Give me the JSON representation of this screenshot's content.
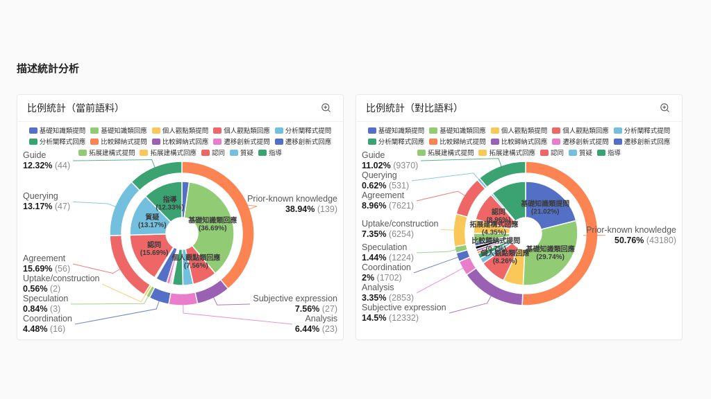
{
  "page": {
    "title": "描述統計分析"
  },
  "legend": {
    "items": [
      {
        "label": "基礎知識類提問",
        "color": "#5470c6"
      },
      {
        "label": "基礎知識類回應",
        "color": "#91cc75"
      },
      {
        "label": "個人觀點類提問",
        "color": "#fac858"
      },
      {
        "label": "個人觀點類回應",
        "color": "#ee6666"
      },
      {
        "label": "分析闡釋式提問",
        "color": "#73c0de"
      },
      {
        "label": "分析闡釋式回應",
        "color": "#3ba272"
      },
      {
        "label": "比較歸納式提問",
        "color": "#fc8452"
      },
      {
        "label": "比較歸納式回應",
        "color": "#9a60b4"
      },
      {
        "label": "遷移創新式提問",
        "color": "#ea7ccc"
      },
      {
        "label": "遷移創新式回應",
        "color": "#5470c6"
      },
      {
        "label": "拓展建構式提問",
        "color": "#91cc75"
      },
      {
        "label": "拓展建構式回應",
        "color": "#fac858"
      },
      {
        "label": "認同",
        "color": "#ee6666"
      },
      {
        "label": "質疑",
        "color": "#73c0de"
      },
      {
        "label": "指導",
        "color": "#3ba272"
      }
    ]
  },
  "panels": [
    {
      "title": "比例統計（當前語料）",
      "zoom_icon": "zoom-in-icon"
    },
    {
      "title": "比例統計（對比語料）",
      "zoom_icon": "zoom-in-icon"
    }
  ],
  "chart_data": [
    {
      "type": "pie",
      "variant": "nested-donut",
      "title": "比例統計（當前語料）",
      "legend_position": "top",
      "outer_ring": {
        "name": "interaction-categories",
        "segments": [
          {
            "label": "Prior-known knowledge",
            "pct": "38.94%",
            "value": 38.94,
            "count": 139,
            "color": "#fc8452"
          },
          {
            "label": "Subjective expression",
            "pct": "7.56%",
            "value": 7.56,
            "count": 27,
            "color": "#9a60b4"
          },
          {
            "label": "Analysis",
            "pct": "6.44%",
            "value": 6.44,
            "count": 23,
            "color": "#ea7ccc"
          },
          {
            "label": "Coordination",
            "pct": "4.48%",
            "value": 4.48,
            "count": 16,
            "color": "#5470c6"
          },
          {
            "label": "Speculation",
            "pct": "0.84%",
            "value": 0.84,
            "count": 3,
            "color": "#91cc75"
          },
          {
            "label": "Uptake/construction",
            "pct": "0.56%",
            "value": 0.56,
            "count": 2,
            "color": "#fac858"
          },
          {
            "label": "Agreement",
            "pct": "15.69%",
            "value": 15.69,
            "count": 56,
            "color": "#ee6666"
          },
          {
            "label": "Querying",
            "pct": "13.17%",
            "value": 13.17,
            "count": 47,
            "color": "#73c0de"
          },
          {
            "label": "Guide",
            "pct": "12.32%",
            "value": 12.32,
            "count": 44,
            "color": "#3ba272"
          }
        ]
      },
      "inner_ring": {
        "name": "subcategories",
        "segments": [
          {
            "label": "基礎知識類提問",
            "value": 2.25,
            "color": "#5470c6",
            "show_label": false
          },
          {
            "label": "基礎知識類回應",
            "value": 36.69,
            "pct": "36.69%",
            "color": "#91cc75",
            "show_label": true
          },
          {
            "label": "個人觀點類提問",
            "value": 0,
            "color": "#fac858",
            "show_label": false
          },
          {
            "label": "個人觀點類回應",
            "value": 7.56,
            "pct": "7.56%",
            "color": "#ee6666",
            "show_label": true
          },
          {
            "label": "分析闡釋式提問",
            "value": 3.2,
            "color": "#73c0de",
            "show_label": false
          },
          {
            "label": "分析闡釋式回應",
            "value": 3.24,
            "color": "#3ba272",
            "show_label": false
          },
          {
            "label": "比較歸納式提問",
            "value": 0.4,
            "color": "#fc8452",
            "show_label": false
          },
          {
            "label": "比較歸納式回應",
            "value": 0.44,
            "color": "#9a60b4",
            "show_label": false
          },
          {
            "label": "遷移創新式提問",
            "value": 1.0,
            "color": "#ea7ccc",
            "show_label": false
          },
          {
            "label": "遷移創新式回應",
            "value": 3.48,
            "color": "#5470c6",
            "show_label": false
          },
          {
            "label": "拓展建構式提問",
            "value": 0.28,
            "color": "#91cc75",
            "show_label": false
          },
          {
            "label": "拓展建構式回應",
            "value": 0.28,
            "color": "#fac858",
            "show_label": false
          },
          {
            "label": "認同",
            "value": 15.69,
            "pct": "15.69%",
            "color": "#ee6666",
            "show_label": true
          },
          {
            "label": "質疑",
            "value": 13.17,
            "pct": "13.17%",
            "color": "#73c0de",
            "show_label": true
          },
          {
            "label": "指導",
            "value": 12.33,
            "pct": "12.33%",
            "color": "#3ba272",
            "show_label": true
          }
        ]
      }
    },
    {
      "type": "pie",
      "variant": "nested-donut",
      "title": "比例統計（對比語料）",
      "legend_position": "top",
      "outer_ring": {
        "name": "interaction-categories",
        "segments": [
          {
            "label": "Prior-known knowledge",
            "pct": "50.76%",
            "value": 50.76,
            "count": 43180,
            "color": "#fc8452"
          },
          {
            "label": "Subjective expression",
            "pct": "14.5%",
            "value": 14.5,
            "count": 12332,
            "color": "#9a60b4"
          },
          {
            "label": "Analysis",
            "pct": "3.35%",
            "value": 3.35,
            "count": 2853,
            "color": "#ea7ccc"
          },
          {
            "label": "Coordination",
            "pct": "2%",
            "value": 2,
            "count": 1702,
            "color": "#5470c6"
          },
          {
            "label": "Speculation",
            "pct": "1.44%",
            "value": 1.44,
            "count": 1224,
            "color": "#91cc75"
          },
          {
            "label": "Uptake/construction",
            "pct": "7.35%",
            "value": 7.35,
            "count": 6254,
            "color": "#fac858"
          },
          {
            "label": "Agreement",
            "pct": "8.96%",
            "value": 8.96,
            "count": 7621,
            "color": "#ee6666"
          },
          {
            "label": "Querying",
            "pct": "0.62%",
            "value": 0.62,
            "count": 531,
            "color": "#73c0de"
          },
          {
            "label": "Guide",
            "pct": "11.02%",
            "value": 11.02,
            "count": 9370,
            "color": "#3ba272"
          }
        ]
      },
      "inner_ring": {
        "name": "subcategories",
        "segments": [
          {
            "label": "基礎知識類提問",
            "value": 21.02,
            "pct": "21.02%",
            "color": "#5470c6",
            "show_label": true
          },
          {
            "label": "基礎知識類回應",
            "value": 29.74,
            "pct": "29.74%",
            "color": "#91cc75",
            "show_label": true
          },
          {
            "label": "個人觀點類提問",
            "value": 6.24,
            "color": "#fac858",
            "show_label": false
          },
          {
            "label": "個人觀點類回應",
            "value": 8.26,
            "pct": "8.26%",
            "color": "#ee6666",
            "show_label": true
          },
          {
            "label": "分析闡釋式提問",
            "value": 1.7,
            "color": "#73c0de",
            "show_label": false
          },
          {
            "label": "分析闡釋式回應",
            "value": 1.65,
            "color": "#3ba272",
            "show_label": false
          },
          {
            "label": "比較歸納式提問",
            "value": 0.7,
            "pct": "0.7%",
            "color": "#fc8452",
            "show_label": true
          },
          {
            "label": "比較歸納式回應",
            "value": 0.74,
            "color": "#9a60b4",
            "show_label": false
          },
          {
            "label": "遷移創新式提問",
            "value": 1.0,
            "color": "#ea7cccc",
            "show_label": false
          },
          {
            "label": "遷移創新式回應",
            "value": 1.0,
            "color": "#5470c6",
            "show_label": false
          },
          {
            "label": "拓展建構式提問",
            "value": 3.0,
            "color": "#91cc75",
            "show_label": false
          },
          {
            "label": "拓展建構式回應",
            "value": 4.35,
            "pct": "4.35%",
            "color": "#fac858",
            "show_label": true
          },
          {
            "label": "認同",
            "value": 8.96,
            "pct": "8.96%",
            "color": "#ee6666",
            "show_label": true
          },
          {
            "label": "質疑",
            "value": 0.62,
            "color": "#73c0de",
            "show_label": false
          },
          {
            "label": "指導",
            "value": 11.02,
            "color": "#3ba272",
            "show_label": false
          }
        ]
      }
    }
  ]
}
